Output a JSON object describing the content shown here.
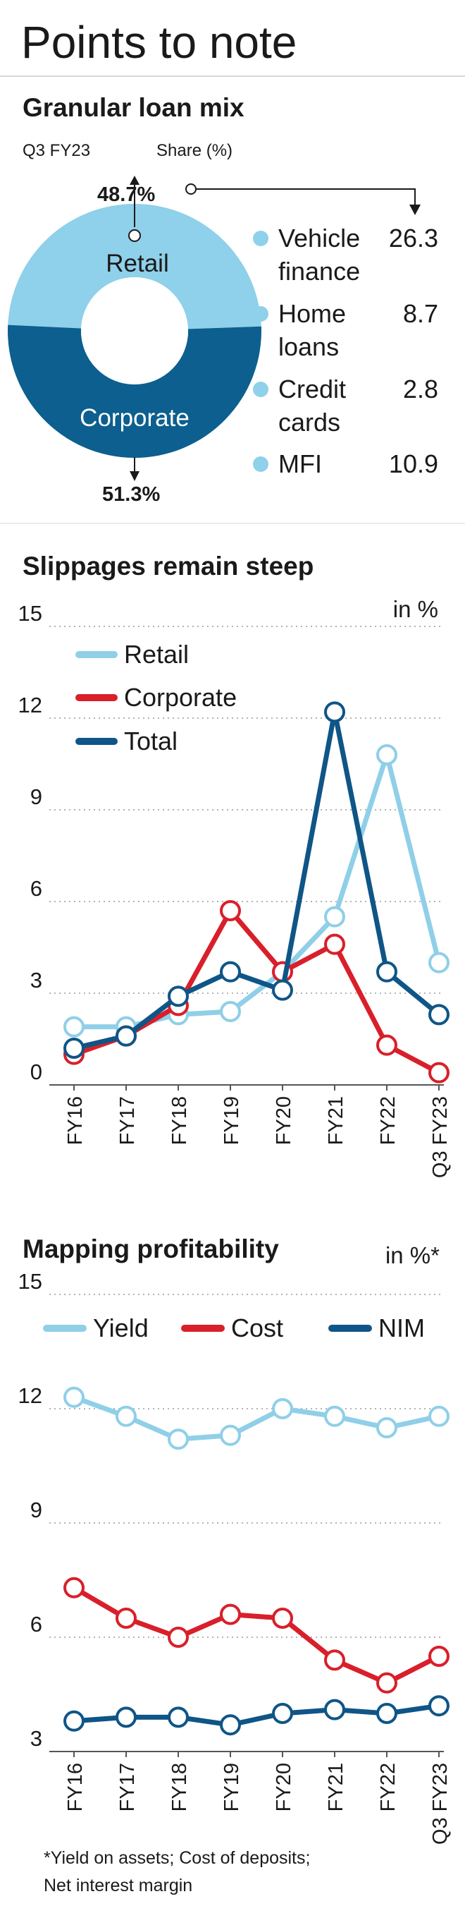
{
  "page_title": "Points to note",
  "footnote": {
    "line1": "*Yield on assets; Cost of deposits;",
    "line2": "Net interest margin"
  },
  "colors": {
    "light": "#8fcfe8",
    "red": "#d91f2a",
    "dark": "#0f5587",
    "ring_light": "#8fd0ea",
    "ring_dark": "#0c5f8e"
  },
  "chart_data": [
    {
      "type": "pie",
      "title": "Granular loan mix",
      "period_label": "Q3 FY23",
      "share_label": "Share (%)",
      "slices": [
        {
          "label": "Retail",
          "value": 48.7,
          "value_label": "48.7%"
        },
        {
          "label": "Corporate",
          "value": 51.3,
          "value_label": "51.3%"
        }
      ],
      "retail_breakdown": [
        {
          "label_line1": "Vehicle",
          "label_line2": "finance",
          "value": 26.3,
          "value_text": "26.3"
        },
        {
          "label_line1": "Home",
          "label_line2": "loans",
          "value": 8.7,
          "value_text": "8.7"
        },
        {
          "label_line1": "Credit",
          "label_line2": "cards",
          "value": 2.8,
          "value_text": "2.8"
        },
        {
          "label_line1": "MFI",
          "label_line2": "",
          "value": 10.9,
          "value_text": "10.9"
        }
      ]
    },
    {
      "type": "line",
      "title": "Slippages remain steep",
      "unit_label": "in %",
      "categories": [
        "FY16",
        "FY17",
        "FY18",
        "FY19",
        "FY20",
        "FY21",
        "FY22",
        "Q3 FY23"
      ],
      "ylim": [
        0,
        15
      ],
      "yticks": [
        "0",
        "3",
        "6",
        "9",
        "12",
        "15"
      ],
      "legend_position": "top-left",
      "grid": true,
      "series": [
        {
          "name": "Retail",
          "color": "#8fcfe8",
          "values": [
            1.9,
            1.9,
            2.3,
            2.4,
            3.7,
            5.5,
            10.8,
            4.0
          ]
        },
        {
          "name": "Corporate",
          "color": "#d91f2a",
          "values": [
            1.0,
            1.6,
            2.6,
            5.7,
            3.7,
            4.6,
            1.3,
            0.4
          ]
        },
        {
          "name": "Total",
          "color": "#0f5587",
          "values": [
            1.2,
            1.6,
            2.9,
            3.7,
            3.1,
            12.2,
            3.7,
            2.3
          ]
        }
      ]
    },
    {
      "type": "line",
      "title": "Mapping profitability",
      "unit_label": "in %*",
      "categories": [
        "FY16",
        "FY17",
        "FY18",
        "FY19",
        "FY20",
        "FY21",
        "FY22",
        "Q3 FY23"
      ],
      "ylim": [
        3,
        15
      ],
      "yticks": [
        "3",
        "6",
        "9",
        "12",
        "15"
      ],
      "legend_position": "top",
      "grid": true,
      "series": [
        {
          "name": "Yield",
          "color": "#8fcfe8",
          "values": [
            12.3,
            11.8,
            11.2,
            11.3,
            12.0,
            11.8,
            11.5,
            11.8
          ]
        },
        {
          "name": "Cost",
          "color": "#d91f2a",
          "values": [
            7.3,
            6.5,
            6.0,
            6.6,
            6.5,
            5.4,
            4.8,
            5.5
          ]
        },
        {
          "name": "NIM",
          "color": "#0f5587",
          "values": [
            3.8,
            3.9,
            3.9,
            3.7,
            4.0,
            4.1,
            4.0,
            4.2
          ]
        }
      ]
    }
  ]
}
